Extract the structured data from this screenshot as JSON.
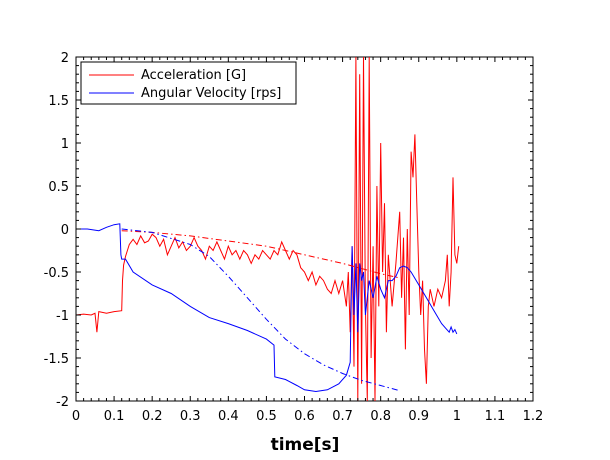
{
  "chart_data": {
    "type": "line",
    "title": "",
    "xlabel": "time[s]",
    "ylabel": "",
    "xlim": [
      0,
      1.2
    ],
    "ylim": [
      -2,
      2
    ],
    "x_ticks": [
      "0",
      "0.1",
      "0.2",
      "0.3",
      "0.4",
      "0.5",
      "0.6",
      "0.7",
      "0.8",
      "0.9",
      "1",
      "1.1",
      "1.2"
    ],
    "y_ticks": [
      "2",
      "1.5",
      "1",
      "0.5",
      "0",
      "-0.5",
      "-1",
      "-1.5",
      "-2"
    ],
    "grid": false,
    "legend_position": "top-left",
    "series": [
      {
        "name": "Acceleration [G]",
        "color": "#ff0000",
        "style": "solid",
        "points": [
          [
            0,
            -1.0
          ],
          [
            0.02,
            -0.99
          ],
          [
            0.04,
            -1.0
          ],
          [
            0.05,
            -0.98
          ],
          [
            0.055,
            -1.2
          ],
          [
            0.06,
            -0.96
          ],
          [
            0.08,
            -0.98
          ],
          [
            0.1,
            -0.96
          ],
          [
            0.12,
            -0.95
          ],
          [
            0.122,
            -0.6
          ],
          [
            0.125,
            -0.42
          ],
          [
            0.13,
            -0.32
          ],
          [
            0.14,
            -0.18
          ],
          [
            0.15,
            -0.12
          ],
          [
            0.16,
            -0.18
          ],
          [
            0.17,
            -0.08
          ],
          [
            0.18,
            -0.16
          ],
          [
            0.19,
            -0.14
          ],
          [
            0.2,
            -0.06
          ],
          [
            0.21,
            -0.1
          ],
          [
            0.22,
            -0.2
          ],
          [
            0.23,
            -0.12
          ],
          [
            0.24,
            -0.3
          ],
          [
            0.25,
            -0.2
          ],
          [
            0.26,
            -0.1
          ],
          [
            0.27,
            -0.22
          ],
          [
            0.28,
            -0.15
          ],
          [
            0.29,
            -0.25
          ],
          [
            0.3,
            -0.2
          ],
          [
            0.31,
            -0.1
          ],
          [
            0.32,
            -0.2
          ],
          [
            0.33,
            -0.25
          ],
          [
            0.34,
            -0.35
          ],
          [
            0.35,
            -0.2
          ],
          [
            0.36,
            -0.25
          ],
          [
            0.37,
            -0.15
          ],
          [
            0.38,
            -0.25
          ],
          [
            0.39,
            -0.35
          ],
          [
            0.4,
            -0.2
          ],
          [
            0.41,
            -0.3
          ],
          [
            0.42,
            -0.25
          ],
          [
            0.43,
            -0.35
          ],
          [
            0.44,
            -0.25
          ],
          [
            0.45,
            -0.3
          ],
          [
            0.46,
            -0.4
          ],
          [
            0.47,
            -0.3
          ],
          [
            0.48,
            -0.35
          ],
          [
            0.49,
            -0.25
          ],
          [
            0.5,
            -0.3
          ],
          [
            0.51,
            -0.35
          ],
          [
            0.52,
            -0.25
          ],
          [
            0.53,
            -0.3
          ],
          [
            0.54,
            -0.15
          ],
          [
            0.55,
            -0.25
          ],
          [
            0.56,
            -0.35
          ],
          [
            0.57,
            -0.25
          ],
          [
            0.58,
            -0.3
          ],
          [
            0.59,
            -0.45
          ],
          [
            0.6,
            -0.5
          ],
          [
            0.61,
            -0.6
          ],
          [
            0.62,
            -0.5
          ],
          [
            0.63,
            -0.65
          ],
          [
            0.64,
            -0.55
          ],
          [
            0.65,
            -0.6
          ],
          [
            0.66,
            -0.7
          ],
          [
            0.67,
            -0.75
          ],
          [
            0.68,
            -0.6
          ],
          [
            0.69,
            -0.75
          ],
          [
            0.7,
            -0.6
          ],
          [
            0.71,
            -0.9
          ],
          [
            0.715,
            -0.5
          ],
          [
            0.72,
            -1.2
          ],
          [
            0.725,
            -0.2
          ],
          [
            0.73,
            -1.6
          ],
          [
            0.735,
            2.0
          ],
          [
            0.74,
            -2.0
          ],
          [
            0.745,
            1.8
          ],
          [
            0.75,
            -1.8
          ],
          [
            0.755,
            2.0
          ],
          [
            0.76,
            -0.9
          ],
          [
            0.765,
            -2.0
          ],
          [
            0.77,
            2.0
          ],
          [
            0.775,
            -1.5
          ],
          [
            0.78,
            -0.2
          ],
          [
            0.785,
            -2.0
          ],
          [
            0.79,
            0.5
          ],
          [
            0.795,
            -0.9
          ],
          [
            0.8,
            1.0
          ],
          [
            0.805,
            -0.5
          ],
          [
            0.81,
            0.3
          ],
          [
            0.815,
            -1.2
          ],
          [
            0.82,
            -0.3
          ],
          [
            0.83,
            -0.9
          ],
          [
            0.84,
            -0.4
          ],
          [
            0.85,
            0.2
          ],
          [
            0.855,
            -0.8
          ],
          [
            0.86,
            -0.1
          ],
          [
            0.865,
            -1.4
          ],
          [
            0.87,
            0.0
          ],
          [
            0.875,
            -1.0
          ],
          [
            0.88,
            0.9
          ],
          [
            0.885,
            0.6
          ],
          [
            0.89,
            1.1
          ],
          [
            0.895,
            0.3
          ],
          [
            0.9,
            -0.5
          ],
          [
            0.905,
            -1.0
          ],
          [
            0.91,
            -0.6
          ],
          [
            0.915,
            -1.4
          ],
          [
            0.92,
            -1.8
          ],
          [
            0.925,
            -0.9
          ],
          [
            0.93,
            -0.7
          ],
          [
            0.94,
            -0.9
          ],
          [
            0.95,
            -0.7
          ],
          [
            0.96,
            -0.8
          ],
          [
            0.97,
            -0.6
          ],
          [
            0.975,
            -0.3
          ],
          [
            0.98,
            -0.9
          ],
          [
            0.985,
            -0.5
          ],
          [
            0.99,
            0.6
          ],
          [
            0.995,
            -0.3
          ],
          [
            1.0,
            -0.4
          ],
          [
            1.005,
            -0.2
          ]
        ]
      },
      {
        "name": "Angular Velocity [rps]",
        "color": "#0000ff",
        "style": "solid",
        "points": [
          [
            0,
            0.0
          ],
          [
            0.03,
            0.0
          ],
          [
            0.06,
            -0.02
          ],
          [
            0.08,
            0.02
          ],
          [
            0.1,
            0.05
          ],
          [
            0.115,
            0.06
          ],
          [
            0.118,
            -0.3
          ],
          [
            0.12,
            -0.35
          ],
          [
            0.13,
            -0.35
          ],
          [
            0.15,
            -0.5
          ],
          [
            0.2,
            -0.65
          ],
          [
            0.25,
            -0.75
          ],
          [
            0.3,
            -0.9
          ],
          [
            0.35,
            -1.03
          ],
          [
            0.4,
            -1.1
          ],
          [
            0.45,
            -1.18
          ],
          [
            0.5,
            -1.28
          ],
          [
            0.52,
            -1.35
          ],
          [
            0.522,
            -1.72
          ],
          [
            0.55,
            -1.75
          ],
          [
            0.58,
            -1.82
          ],
          [
            0.6,
            -1.87
          ],
          [
            0.63,
            -1.89
          ],
          [
            0.66,
            -1.87
          ],
          [
            0.69,
            -1.8
          ],
          [
            0.71,
            -1.7
          ],
          [
            0.72,
            -1.55
          ],
          [
            0.725,
            -0.2
          ],
          [
            0.73,
            -1.0
          ],
          [
            0.735,
            -0.4
          ],
          [
            0.74,
            -1.2
          ],
          [
            0.745,
            -0.4
          ],
          [
            0.75,
            -0.6
          ],
          [
            0.755,
            -0.5
          ],
          [
            0.76,
            -1.0
          ],
          [
            0.77,
            -0.6
          ],
          [
            0.78,
            -0.8
          ],
          [
            0.79,
            -0.55
          ],
          [
            0.8,
            -0.7
          ],
          [
            0.81,
            -0.8
          ],
          [
            0.82,
            -0.6
          ],
          [
            0.83,
            -0.6
          ],
          [
            0.84,
            -0.55
          ],
          [
            0.85,
            -0.45
          ],
          [
            0.86,
            -0.43
          ],
          [
            0.87,
            -0.45
          ],
          [
            0.88,
            -0.5
          ],
          [
            0.9,
            -0.65
          ],
          [
            0.92,
            -0.8
          ],
          [
            0.94,
            -0.95
          ],
          [
            0.96,
            -1.1
          ],
          [
            0.97,
            -1.15
          ],
          [
            0.98,
            -1.2
          ],
          [
            0.985,
            -1.14
          ],
          [
            0.99,
            -1.2
          ],
          [
            0.995,
            -1.17
          ],
          [
            1.0,
            -1.22
          ]
        ]
      },
      {
        "name": "",
        "color": "#ff0000",
        "style": "dashdot",
        "points": [
          [
            0.12,
            -0.02
          ],
          [
            0.2,
            -0.04
          ],
          [
            0.3,
            -0.08
          ],
          [
            0.4,
            -0.14
          ],
          [
            0.5,
            -0.2
          ],
          [
            0.6,
            -0.3
          ],
          [
            0.7,
            -0.4
          ],
          [
            0.8,
            -0.52
          ],
          [
            0.85,
            -0.57
          ]
        ]
      },
      {
        "name": "",
        "color": "#0000ff",
        "style": "dashdot",
        "points": [
          [
            0.12,
            0.0
          ],
          [
            0.2,
            -0.04
          ],
          [
            0.3,
            -0.18
          ],
          [
            0.35,
            -0.32
          ],
          [
            0.4,
            -0.55
          ],
          [
            0.45,
            -0.8
          ],
          [
            0.5,
            -1.05
          ],
          [
            0.55,
            -1.28
          ],
          [
            0.6,
            -1.45
          ],
          [
            0.65,
            -1.58
          ],
          [
            0.7,
            -1.68
          ],
          [
            0.75,
            -1.76
          ],
          [
            0.8,
            -1.82
          ],
          [
            0.85,
            -1.88
          ]
        ]
      }
    ]
  }
}
